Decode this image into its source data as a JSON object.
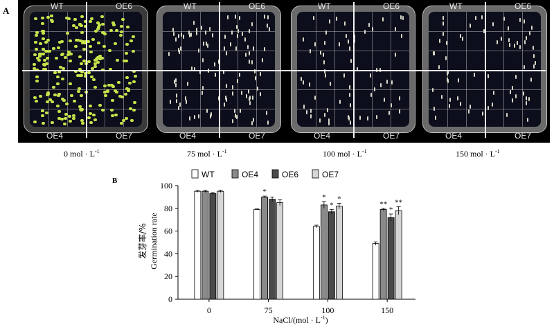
{
  "figure": {
    "panel_a": "A",
    "panel_b": "B"
  },
  "plates": [
    {
      "conc_value": "0",
      "unit": "mol · L",
      "unit_sup": "-1",
      "labels": {
        "tl": "WT",
        "tr": "OE6",
        "bl": "OE4",
        "br": "OE7"
      },
      "seedling_color": "#c6e24a",
      "density": "high"
    },
    {
      "conc_value": "75",
      "unit": "mol · L",
      "unit_sup": "-1",
      "labels": {
        "tl": "WT",
        "tr": "OE6",
        "bl": "OE4",
        "br": "OE7"
      },
      "seedling_color": "#d8d8c8",
      "density": "medium"
    },
    {
      "conc_value": "100",
      "unit": "mol · L",
      "unit_sup": "-1",
      "labels": {
        "tl": "WT",
        "tr": "OE6",
        "bl": "OE4",
        "br": "OE7"
      },
      "seedling_color": "#d8d8c8",
      "density": "low"
    },
    {
      "conc_value": "150",
      "unit": "mol · L",
      "unit_sup": "-1",
      "labels": {
        "tl": "WT",
        "tr": "OE6",
        "bl": "OE4",
        "br": "OE7"
      },
      "seedling_color": "#d8d8c8",
      "density": "low"
    }
  ],
  "chart_data": {
    "type": "bar",
    "categories": [
      "0",
      "75",
      "100",
      "150"
    ],
    "xlabel": "NaCl/(mol · L",
    "xlabel_sup": "-1",
    "xlabel_end": ")",
    "ylabel_cn": "发芽率/%",
    "ylabel_en": "Germination rate",
    "ylim": [
      0,
      100
    ],
    "yticks": [
      0,
      20,
      40,
      60,
      80,
      100
    ],
    "series": [
      {
        "name": "WT",
        "color": "#ffffff",
        "values": [
          95,
          79,
          64,
          49
        ],
        "errors": [
          0.8,
          0.5,
          1.2,
          1.5
        ],
        "sig": [
          "",
          "",
          "",
          ""
        ]
      },
      {
        "name": "OE4",
        "color": "#8a8a8a",
        "values": [
          95,
          90,
          83,
          79
        ],
        "errors": [
          1.0,
          0.8,
          3.0,
          1.0
        ],
        "sig": [
          "",
          "*",
          "*",
          "**"
        ]
      },
      {
        "name": "OE6",
        "color": "#4a4a4a",
        "values": [
          93,
          88,
          77,
          72
        ],
        "errors": [
          1.0,
          2.0,
          2.0,
          3.0
        ],
        "sig": [
          "",
          "",
          "*",
          "*"
        ]
      },
      {
        "name": "OE7",
        "color": "#d6d6d6",
        "values": [
          95,
          85,
          82,
          78
        ],
        "errors": [
          1.0,
          2.5,
          2.5,
          3.5
        ],
        "sig": [
          "",
          "",
          "*",
          "**"
        ]
      }
    ]
  }
}
